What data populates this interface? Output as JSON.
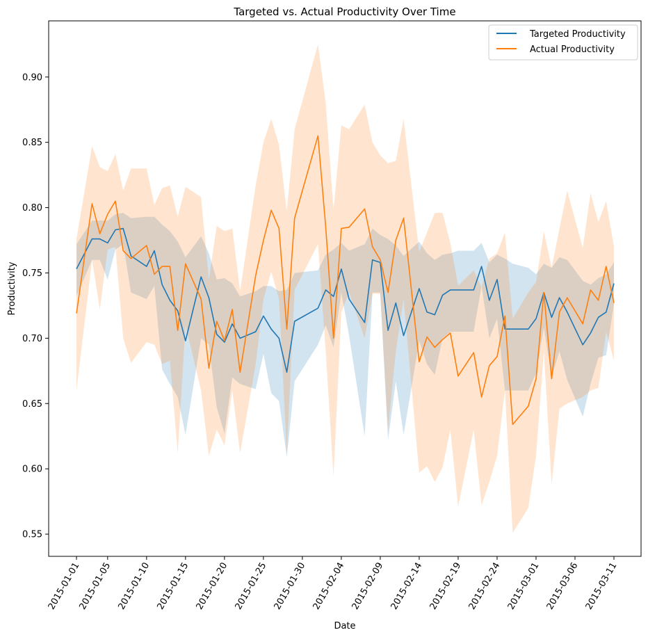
{
  "chart_data": {
    "type": "line",
    "title": "Targeted vs. Actual Productivity Over Time",
    "xlabel": "Date",
    "ylabel": "Productivity",
    "ylim": [
      0.533,
      0.943
    ],
    "yticks": [
      0.55,
      0.6,
      0.65,
      0.7,
      0.75,
      0.8,
      0.85,
      0.9
    ],
    "grid": false,
    "legend_position": "top-right",
    "x": [
      "2015-01-01",
      "2015-01-03",
      "2015-01-04",
      "2015-01-05",
      "2015-01-06",
      "2015-01-07",
      "2015-01-08",
      "2015-01-10",
      "2015-01-11",
      "2015-01-12",
      "2015-01-13",
      "2015-01-14",
      "2015-01-15",
      "2015-01-17",
      "2015-01-18",
      "2015-01-19",
      "2015-01-20",
      "2015-01-21",
      "2015-01-22",
      "2015-01-24",
      "2015-01-25",
      "2015-01-26",
      "2015-01-27",
      "2015-01-28",
      "2015-01-29",
      "2015-02-01",
      "2015-02-02",
      "2015-02-03",
      "2015-02-04",
      "2015-02-05",
      "2015-02-07",
      "2015-02-08",
      "2015-02-09",
      "2015-02-10",
      "2015-02-11",
      "2015-02-12",
      "2015-02-14",
      "2015-02-15",
      "2015-02-16",
      "2015-02-17",
      "2015-02-18",
      "2015-02-19",
      "2015-02-21",
      "2015-02-22",
      "2015-02-23",
      "2015-02-24",
      "2015-02-25",
      "2015-02-26",
      "2015-02-28",
      "2015-03-01",
      "2015-03-02",
      "2015-03-03",
      "2015-03-04",
      "2015-03-05",
      "2015-03-07",
      "2015-03-08",
      "2015-03-09",
      "2015-03-10",
      "2015-03-11"
    ],
    "xtick_labels": [
      "2015-01-01",
      "2015-01-05",
      "2015-01-10",
      "2015-01-15",
      "2015-01-20",
      "2015-01-25",
      "2015-01-30",
      "2015-02-04",
      "2015-02-09",
      "2015-02-14",
      "2015-02-19",
      "2015-02-24",
      "2015-03-01",
      "2015-03-06",
      "2015-03-11"
    ],
    "series": [
      {
        "name": "Targeted Productivity",
        "color": "#1f77b4",
        "values": [
          0.753,
          0.776,
          0.776,
          0.773,
          0.783,
          0.784,
          0.763,
          0.755,
          0.767,
          0.741,
          0.729,
          0.721,
          0.698,
          0.747,
          0.731,
          0.703,
          0.697,
          0.711,
          0.7,
          0.705,
          0.717,
          0.707,
          0.7,
          0.674,
          0.713,
          0.723,
          0.737,
          0.732,
          0.753,
          0.73,
          0.712,
          0.76,
          0.758,
          0.706,
          0.727,
          0.702,
          0.738,
          0.72,
          0.718,
          0.733,
          0.737,
          0.737,
          0.737,
          0.755,
          0.729,
          0.745,
          0.707,
          0.707,
          0.707,
          0.715,
          0.735,
          0.716,
          0.731,
          0.72,
          0.695,
          0.704,
          0.716,
          0.72,
          0.742
        ],
        "ci_lower": [
          0.732,
          0.76,
          0.76,
          0.745,
          0.768,
          0.772,
          0.735,
          0.73,
          0.74,
          0.676,
          0.665,
          0.655,
          0.626,
          0.7,
          0.695,
          0.647,
          0.627,
          0.67,
          0.665,
          0.661,
          0.688,
          0.658,
          0.652,
          0.609,
          0.667,
          0.695,
          0.71,
          0.693,
          0.735,
          0.702,
          0.625,
          0.735,
          0.735,
          0.622,
          0.667,
          0.626,
          0.698,
          0.68,
          0.672,
          0.7,
          0.705,
          0.705,
          0.705,
          0.74,
          0.7,
          0.715,
          0.66,
          0.66,
          0.66,
          0.673,
          0.708,
          0.67,
          0.69,
          0.668,
          0.64,
          0.665,
          0.685,
          0.687,
          0.726
        ],
        "ci_upper": [
          0.772,
          0.79,
          0.79,
          0.79,
          0.795,
          0.796,
          0.792,
          0.793,
          0.793,
          0.787,
          0.782,
          0.774,
          0.762,
          0.778,
          0.765,
          0.745,
          0.746,
          0.742,
          0.732,
          0.736,
          0.74,
          0.74,
          0.736,
          0.737,
          0.75,
          0.752,
          0.764,
          0.768,
          0.773,
          0.767,
          0.772,
          0.784,
          0.779,
          0.776,
          0.771,
          0.763,
          0.774,
          0.765,
          0.76,
          0.764,
          0.765,
          0.767,
          0.767,
          0.773,
          0.758,
          0.764,
          0.761,
          0.757,
          0.754,
          0.749,
          0.757,
          0.754,
          0.762,
          0.76,
          0.744,
          0.741,
          0.746,
          0.749,
          0.758
        ]
      },
      {
        "name": "Actual Productivity",
        "color": "#ff7f0e",
        "values": [
          0.719,
          0.803,
          0.78,
          0.795,
          0.805,
          0.767,
          0.761,
          0.771,
          0.749,
          0.755,
          0.755,
          0.706,
          0.757,
          0.73,
          0.677,
          0.713,
          0.698,
          0.722,
          0.674,
          0.748,
          0.775,
          0.798,
          0.784,
          0.707,
          0.792,
          0.855,
          0.785,
          0.7,
          0.784,
          0.785,
          0.799,
          0.77,
          0.76,
          0.735,
          0.775,
          0.792,
          0.682,
          0.701,
          0.693,
          0.699,
          0.704,
          0.671,
          0.689,
          0.655,
          0.679,
          0.686,
          0.717,
          0.634,
          0.648,
          0.669,
          0.735,
          0.669,
          0.72,
          0.731,
          0.711,
          0.737,
          0.729,
          0.755,
          0.727
        ],
        "ci_lower": [
          0.66,
          0.76,
          0.722,
          0.768,
          0.77,
          0.7,
          0.681,
          0.697,
          0.695,
          0.68,
          0.683,
          0.612,
          0.71,
          0.66,
          0.61,
          0.63,
          0.618,
          0.66,
          0.612,
          0.68,
          0.73,
          0.751,
          0.73,
          0.612,
          0.737,
          0.772,
          0.69,
          0.594,
          0.72,
          0.735,
          0.7,
          0.734,
          0.734,
          0.63,
          0.69,
          0.73,
          0.597,
          0.602,
          0.59,
          0.601,
          0.63,
          0.571,
          0.63,
          0.572,
          0.59,
          0.61,
          0.66,
          0.551,
          0.57,
          0.61,
          0.69,
          0.588,
          0.646,
          0.65,
          0.655,
          0.66,
          0.662,
          0.705,
          0.683
        ],
        "ci_upper": [
          0.776,
          0.847,
          0.831,
          0.828,
          0.841,
          0.813,
          0.83,
          0.83,
          0.802,
          0.815,
          0.817,
          0.793,
          0.816,
          0.808,
          0.745,
          0.786,
          0.782,
          0.784,
          0.736,
          0.817,
          0.85,
          0.868,
          0.848,
          0.797,
          0.86,
          0.925,
          0.88,
          0.798,
          0.863,
          0.86,
          0.879,
          0.85,
          0.84,
          0.834,
          0.836,
          0.868,
          0.766,
          0.781,
          0.796,
          0.796,
          0.773,
          0.74,
          0.752,
          0.739,
          0.761,
          0.765,
          0.781,
          0.715,
          0.735,
          0.743,
          0.782,
          0.754,
          0.784,
          0.813,
          0.769,
          0.811,
          0.789,
          0.805,
          0.77
        ]
      }
    ]
  }
}
